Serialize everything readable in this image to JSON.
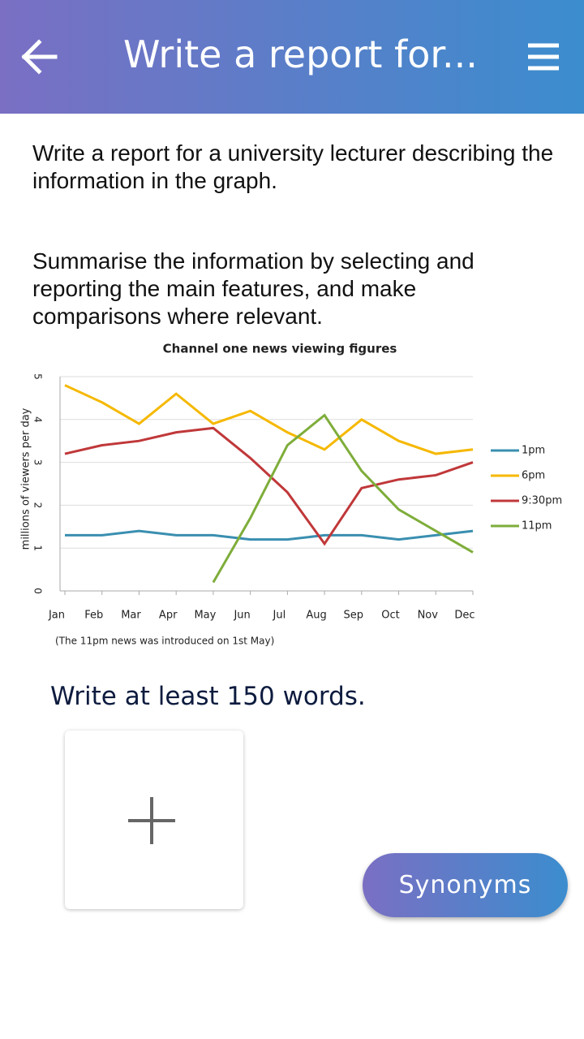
{
  "header": {
    "title": "Write a report for..."
  },
  "prompt": [
    "Write a report for a university lecturer describing the information in the graph.",
    "Summarise the information by selecting and reporting the main features, and make comparisons where relevant."
  ],
  "chart_data": {
    "type": "line",
    "title": "Channel one news viewing figures",
    "ylabel": "millions of viewers per day",
    "note": "(The 11pm news was introduced on 1st May)",
    "categories": [
      "Jan",
      "Feb",
      "Mar",
      "Apr",
      "May",
      "Jun",
      "Jul",
      "Aug",
      "Sep",
      "Oct",
      "Nov",
      "Dec"
    ],
    "series": [
      {
        "name": "1pm",
        "color": "#3a8fb0",
        "values": [
          1.3,
          1.3,
          1.4,
          1.3,
          1.3,
          1.2,
          1.2,
          1.3,
          1.3,
          1.2,
          1.3,
          1.4
        ]
      },
      {
        "name": "6pm",
        "color": "#f5b800",
        "values": [
          4.8,
          4.4,
          3.9,
          4.6,
          3.9,
          4.2,
          3.7,
          3.3,
          4.0,
          3.5,
          3.2,
          3.3
        ]
      },
      {
        "name": "9:30pm",
        "color": "#c0383a",
        "values": [
          3.2,
          3.4,
          3.5,
          3.7,
          3.8,
          3.1,
          2.3,
          1.1,
          2.4,
          2.6,
          2.7,
          3.0
        ]
      },
      {
        "name": "11pm",
        "color": "#7ead3a",
        "values": [
          null,
          null,
          null,
          null,
          0.2,
          1.7,
          3.4,
          4.1,
          2.8,
          1.9,
          1.4,
          0.9
        ]
      }
    ],
    "ylim": [
      0,
      5
    ],
    "yticks": [
      0,
      1,
      2,
      3,
      4,
      5
    ],
    "grid": true,
    "legend": "right"
  },
  "instruction": "Write at least 150 words.",
  "button": "Synonyms"
}
